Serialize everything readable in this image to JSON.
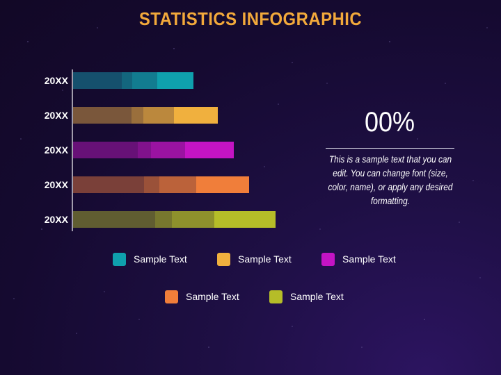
{
  "title": "STATISTICS INFOGRAPHIC",
  "highlight": {
    "value": "00%",
    "description": "This is a sample text that you can edit. You can change font (size, color, name), or apply any desired formatting."
  },
  "legend": [
    {
      "label": "Sample Text",
      "color": "#0fa0ad"
    },
    {
      "label": "Sample Text",
      "color": "#f0b03e"
    },
    {
      "label": "Sample Text",
      "color": "#c414c4"
    },
    {
      "label": "Sample Text",
      "color": "#f07e3a"
    },
    {
      "label": "Sample Text",
      "color": "#b5bd28"
    }
  ],
  "chart_data": {
    "type": "bar",
    "orientation": "horizontal",
    "stacked": true,
    "categories": [
      "20XX",
      "20XX",
      "20XX",
      "20XX",
      "20XX"
    ],
    "bar_colors": [
      "#0fa0ad",
      "#f0b03e",
      "#c414c4",
      "#f07e3a",
      "#b5bd28"
    ],
    "series": [
      {
        "values": [
          70,
          84,
          93,
          102,
          118
        ]
      },
      {
        "values": [
          15,
          17,
          19,
          22,
          24
        ]
      },
      {
        "values": [
          36,
          44,
          49,
          53,
          61
        ]
      },
      {
        "values": [
          52,
          63,
          70,
          76,
          88
        ]
      }
    ],
    "xlim": [
      0,
      300
    ],
    "grid": false
  }
}
